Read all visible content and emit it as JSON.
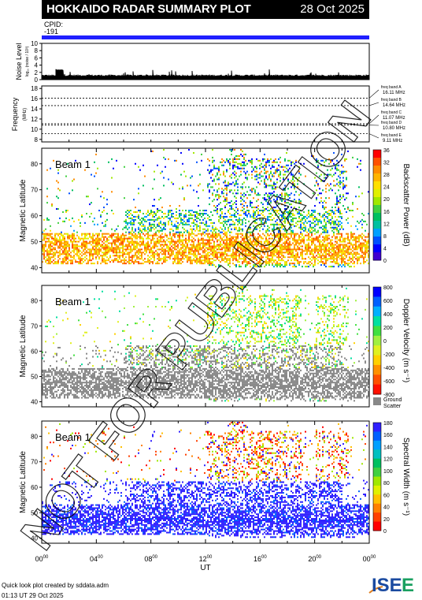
{
  "header": {
    "title": "HOKKAIDO RADAR SUMMARY PLOT",
    "date": "28 Oct 2025"
  },
  "cpid": {
    "label": "CPID:",
    "value": "-191"
  },
  "watermark": "NOT FOR PUBLICATION",
  "colors": {
    "cpid_bar": "#2020ff",
    "ground_scatter": "#888888",
    "backscatter_scale": [
      "#ff0000",
      "#ff5000",
      "#ff8c00",
      "#ffb400",
      "#ffe000",
      "#e0f000",
      "#a0e800",
      "#40d040",
      "#00c060",
      "#00c0a0",
      "#00a0ff",
      "#0050ff",
      "#0000ff",
      "#4000d0"
    ],
    "velocity_scale": [
      "#0000ff",
      "#0060ff",
      "#00b0ff",
      "#00e0a0",
      "#40e040",
      "#a0f040",
      "#e0f020",
      "#ffd000",
      "#ff9000",
      "#ff5000",
      "#ff1000"
    ],
    "width_scale": [
      "#3020ff",
      "#0060ff",
      "#00a0ff",
      "#00c0c0",
      "#00c060",
      "#40d040",
      "#a0e800",
      "#e0f000",
      "#ffc000",
      "#ff8000",
      "#ff4000",
      "#ff0000"
    ]
  },
  "time_axis": {
    "label": "UT",
    "ticks": [
      {
        "h": "00",
        "m": "00"
      },
      {
        "h": "04",
        "m": "00"
      },
      {
        "h": "08",
        "m": "00"
      },
      {
        "h": "12",
        "m": "00"
      },
      {
        "h": "16",
        "m": "00"
      },
      {
        "h": "20",
        "m": "00"
      },
      {
        "h": "00",
        "m": "00"
      }
    ]
  },
  "noise_panel": {
    "ylabel": "Noise Level",
    "ysublabel": "log₁₀ (noise / 10³)",
    "yticks": [
      "10",
      "8",
      "6",
      "4",
      "2",
      "0"
    ]
  },
  "frequency_panel": {
    "ylabel": "Frequency",
    "yunit": "(MHz)",
    "yticks": [
      "18",
      "16",
      "14",
      "12",
      "10",
      "8"
    ],
    "bands": [
      {
        "freq": 16.11,
        "name": "freq band A",
        "value": "16.11 MHz"
      },
      {
        "freq": 14.64,
        "name": "freq band B",
        "value": "14.64 MHz"
      },
      {
        "freq": 11.07,
        "name": "freq band C",
        "value": "11.07 MHz"
      },
      {
        "freq": 10.8,
        "name": "freq band D",
        "value": "10.80 MHz"
      },
      {
        "freq": 9.11,
        "name": "freq band E",
        "value": "9.11 MHz"
      }
    ]
  },
  "panels": [
    {
      "ylabel": "Magnetic Latitude",
      "beam": "Beam  1",
      "cbar_label": "Backscatter Power (dB)",
      "cbar_ticks": [
        "36",
        "32",
        "28",
        "24",
        "20",
        "16",
        "12",
        "8",
        "4",
        "0"
      ],
      "yticks": [
        "80",
        "70",
        "60",
        "50",
        "40"
      ]
    },
    {
      "ylabel": "Magnetic Latitude",
      "beam": "Beam  1",
      "cbar_label": "Doppler Velocity (m s⁻¹)",
      "cbar_ticks": [
        "800",
        "600",
        "400",
        "200",
        "0",
        "-200",
        "-400",
        "-600",
        "-800"
      ],
      "yticks": [
        "80",
        "70",
        "60",
        "50",
        "40"
      ],
      "ground_label_1": "Ground",
      "ground_label_2": "Scatter"
    },
    {
      "ylabel": "Magnetic Latitude",
      "beam": "Beam  1",
      "cbar_label": "Spectral Width (m s⁻¹)",
      "cbar_ticks": [
        "180",
        "160",
        "140",
        "120",
        "100",
        "80",
        "60",
        "40",
        "20",
        "0"
      ],
      "yticks": [
        "80",
        "70",
        "60",
        "50",
        "40"
      ]
    }
  ],
  "footer": {
    "line1": "Quick look plot created by sddata.adm",
    "line2": "01:13 UT 29 Oct 2025",
    "logo_text": "ISEE"
  },
  "chart_data": {
    "type": "heatmap",
    "title": "HOKKAIDO RADAR SUMMARY PLOT",
    "xlabel": "UT",
    "xlim": [
      0,
      24
    ],
    "ylim": [
      38,
      86
    ],
    "ylabel": "Magnetic Latitude",
    "series": [
      {
        "name": "Backscatter Power (dB)",
        "range": [
          0,
          36
        ]
      },
      {
        "name": "Doppler Velocity (m s⁻¹)",
        "range": [
          -800,
          800
        ]
      },
      {
        "name": "Spectral Width (m s⁻¹)",
        "range": [
          0,
          180
        ]
      }
    ]
  }
}
